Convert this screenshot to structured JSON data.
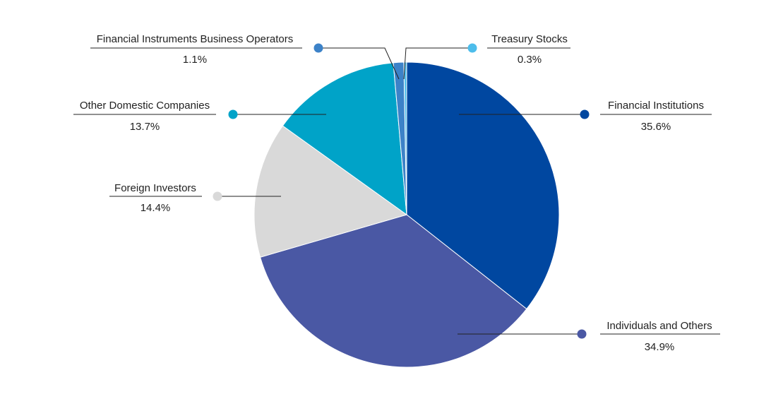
{
  "chart_data": {
    "type": "pie",
    "title": "",
    "unit": "%",
    "slices": [
      {
        "label": "Financial Institutions",
        "value": 35.6,
        "value_label": "35.6%",
        "color": "#0047A0"
      },
      {
        "label": "Individuals and Others",
        "value": 34.9,
        "value_label": "34.9%",
        "color": "#4A58A4"
      },
      {
        "label": "Foreign Investors",
        "value": 14.4,
        "value_label": "14.4%",
        "color": "#D9D9D9"
      },
      {
        "label": "Other Domestic Companies",
        "value": 13.7,
        "value_label": "13.7%",
        "color": "#00A3C8"
      },
      {
        "label": "Financial Instruments Business Operators",
        "value": 1.1,
        "value_label": "1.1%",
        "color": "#3C82C8"
      },
      {
        "label": "Treasury Stocks",
        "value": 0.3,
        "value_label": "0.3%",
        "color": "#4DBDEB"
      }
    ],
    "start_angle": "12 o'clock",
    "direction": "clockwise",
    "legend": "callout labels"
  }
}
